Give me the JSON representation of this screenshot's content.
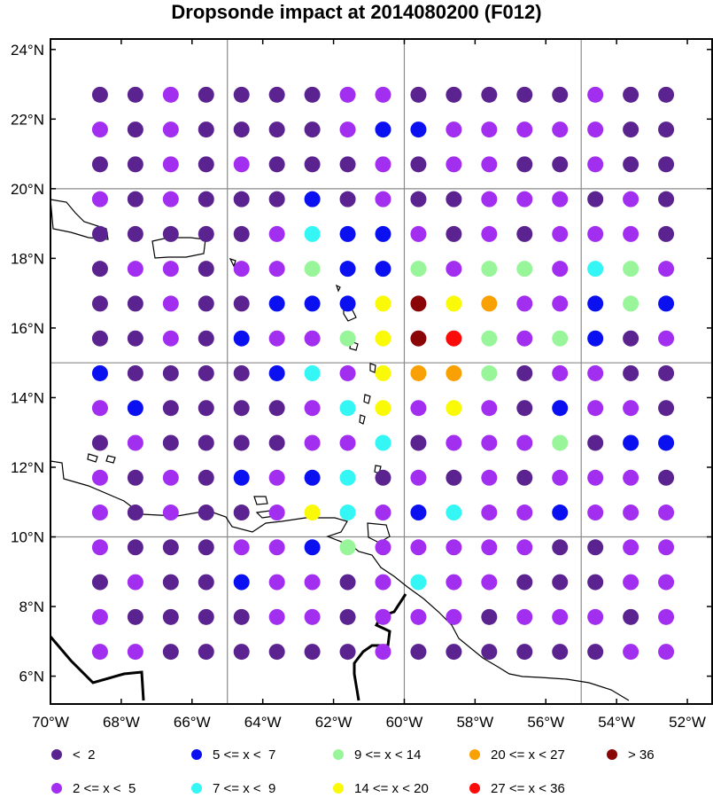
{
  "title": "Dropsonde impact at 2014080200 (F012)",
  "colors": {
    "a": "#5a2390",
    "b": "#a22ef0",
    "c": "#0a10f0",
    "d": "#34f6f4",
    "e": "#98f59a",
    "f": "#fafa08",
    "g": "#f9a005",
    "h": "#fa0a08",
    "i": "#8a0506"
  },
  "legend": [
    {
      "code": "a",
      "label": "<  2"
    },
    {
      "code": "c",
      "label": "5 <= x <  7"
    },
    {
      "code": "e",
      "label": "9 <= x < 14"
    },
    {
      "code": "g",
      "label": "20 <= x < 27"
    },
    {
      "code": "i",
      "label": "> 36"
    },
    {
      "code": "b",
      "label": "2 <= x <  5"
    },
    {
      "code": "d",
      "label": "7 <= x <  9"
    },
    {
      "code": "f",
      "label": "14 <= x < 20"
    },
    {
      "code": "h",
      "label": "27 <= x < 36"
    }
  ],
  "axes": {
    "lon_ticks": [
      "70°W",
      "68°W",
      "66°W",
      "64°W",
      "62°W",
      "60°W",
      "58°W",
      "56°W",
      "54°W",
      "52°W"
    ],
    "lat_ticks": [
      "6°N",
      "8°N",
      "10°N",
      "12°N",
      "14°N",
      "16°N",
      "18°N",
      "20°N",
      "22°N",
      "24°N"
    ],
    "lon_range": [
      -70,
      -51.3
    ],
    "lat_range": [
      5.2,
      24.3
    ],
    "grid_lon": [
      -65,
      -60,
      -55
    ],
    "grid_lat": [
      10,
      15,
      20
    ]
  },
  "chart_data": {
    "type": "scatter",
    "title": "Dropsonde impact at 2014080200 (F012)",
    "lons": [
      -68.6,
      -67.6,
      -66.6,
      -65.6,
      -64.6,
      -63.6,
      -62.6,
      -61.6,
      -60.6,
      -59.6,
      -58.6,
      -57.6,
      -56.6,
      -55.6,
      -54.6,
      -53.6,
      -52.6
    ],
    "lats": [
      22.7,
      21.7,
      20.7,
      19.7,
      18.7,
      17.7,
      16.7,
      15.7,
      14.7,
      13.7,
      12.7,
      11.7,
      10.7,
      9.7,
      8.7,
      7.7,
      6.7
    ],
    "rows": [
      "aabaaaabbaaaaabaa",
      "babaaaabccbbbbbaa",
      "aababaaababbaabaa",
      "babaaacabaabbbaba",
      "aaaaabdccbababbba",
      "abbabbeccebeebdeb",
      "aabaacccfifgbbcec",
      "aabacbbefihebecab",
      "caaaacdbfggeabbaa",
      "bcaaaabdfbfbacbba",
      "abaaaabbdabbbeacc",
      "babacbcdabababbba",
      "babaabfdbcdbbcbbb",
      "baaabbcebbbbbaabb",
      "abaacbbabdbbaaabb",
      "baaaabbabbbabbbab",
      "bbaaaaaabaaaaaabb"
    ]
  }
}
